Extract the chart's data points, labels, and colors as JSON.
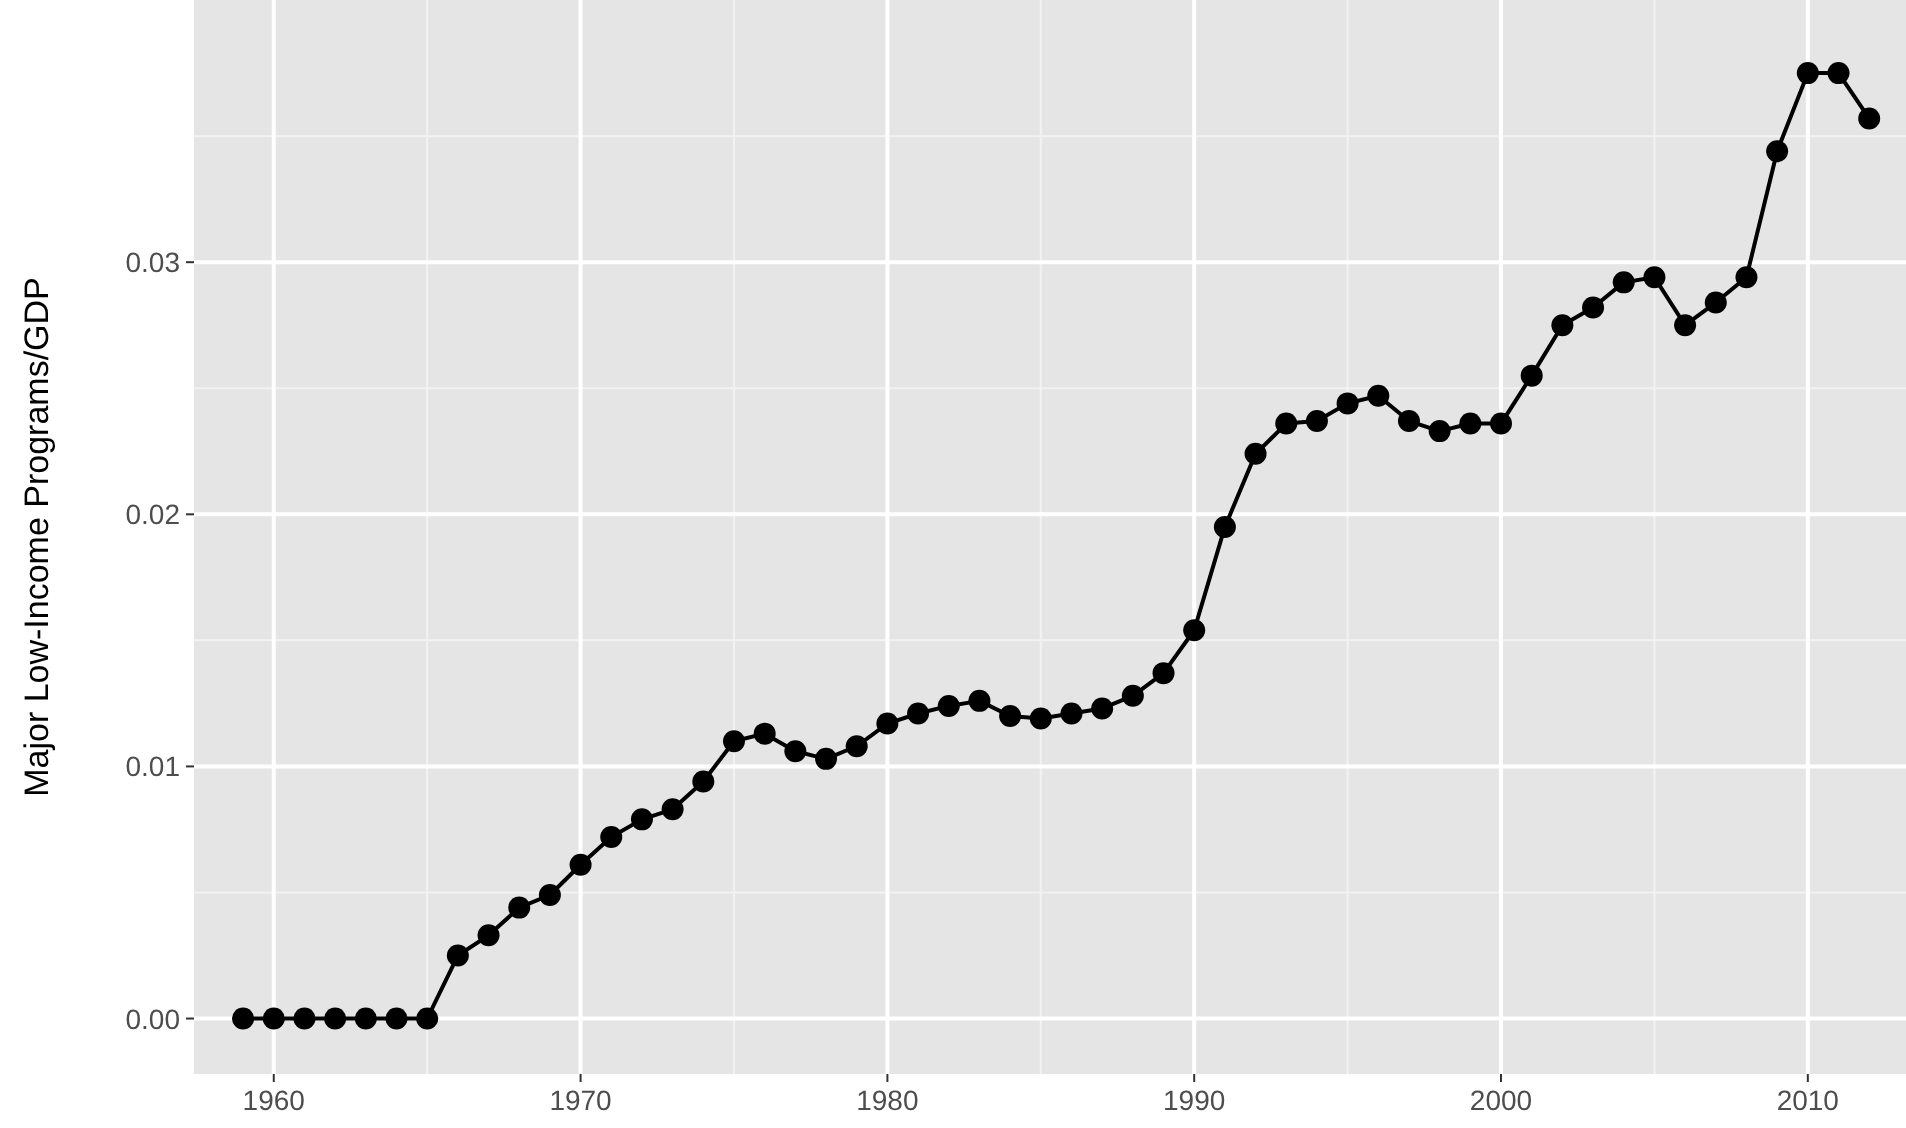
{
  "chart_data": {
    "type": "line",
    "ylabel": "Major Low-Income Programs/GDP",
    "x": [
      1959,
      1960,
      1961,
      1962,
      1963,
      1964,
      1965,
      1966,
      1967,
      1968,
      1969,
      1970,
      1971,
      1972,
      1973,
      1974,
      1975,
      1976,
      1977,
      1978,
      1979,
      1980,
      1981,
      1982,
      1983,
      1984,
      1985,
      1986,
      1987,
      1988,
      1989,
      1990,
      1991,
      1992,
      1993,
      1994,
      1995,
      1996,
      1997,
      1998,
      1999,
      2000,
      2001,
      2002,
      2003,
      2004,
      2005,
      2006,
      2007,
      2008,
      2009,
      2010,
      2011,
      2012
    ],
    "series": [
      {
        "color": "#000000",
        "values": [
          0,
          0,
          0,
          0,
          0,
          0,
          0,
          0.0025,
          0.0033,
          0.0044,
          0.0049,
          0.0061,
          0.0072,
          0.0079,
          0.0083,
          0.0094,
          0.011,
          0.0113,
          0.0106,
          0.0103,
          0.0108,
          0.0117,
          0.0121,
          0.0124,
          0.0126,
          0.012,
          0.0119,
          0.0121,
          0.0123,
          0.0128,
          0.0137,
          0.0154,
          0.0195,
          0.0224,
          0.0236,
          0.0237,
          0.0244,
          0.0247,
          0.0237,
          0.0233,
          0.0236,
          0.0236,
          0.0255,
          0.0275,
          0.0282,
          0.0292,
          0.0294,
          0.0275,
          0.0284,
          0.0294,
          0.0344,
          0.0375,
          0.0375,
          0.0357
        ]
      }
    ],
    "xlim": [
      1957.4,
      2013.2
    ],
    "ylim": [
      -0.0022,
      0.0404
    ],
    "xticks": [
      1960,
      1970,
      1980,
      1990,
      2000,
      2010
    ],
    "yticks": [
      {
        "value": 0,
        "label": "0.00"
      },
      {
        "value": 0.01,
        "label": "0.01"
      },
      {
        "value": 0.02,
        "label": "0.02"
      },
      {
        "value": 0.03,
        "label": "0.03"
      }
    ],
    "grid": true,
    "marker": "circle",
    "line_style": "solid"
  }
}
